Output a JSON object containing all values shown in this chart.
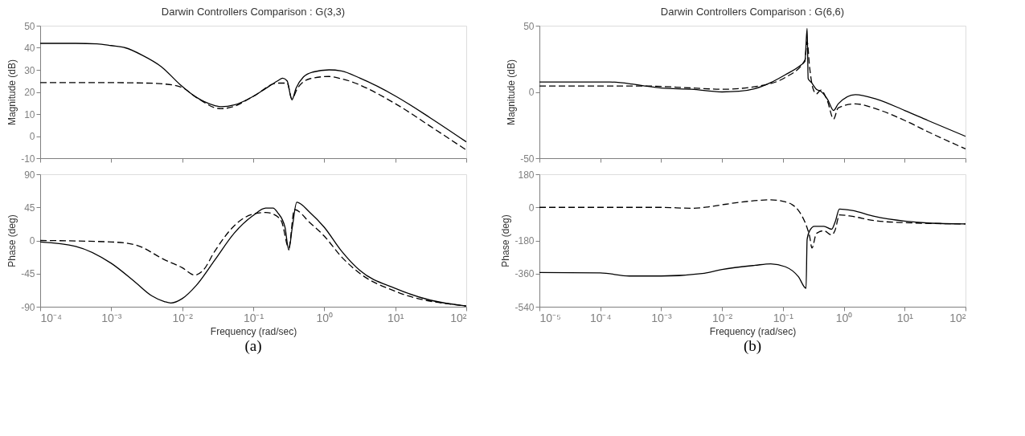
{
  "chart_data": [
    {
      "type": "line",
      "title": "Darwin Controllers Comparison : G(3,3)",
      "ylabel": "Magnitude (dB)",
      "log": "x",
      "grid": false,
      "tick_labels": "y",
      "xlim": [
        0.0001,
        100
      ],
      "xticks": [
        {
          "value": 0.0001,
          "label": null
        },
        {
          "value": 0.001,
          "label": null
        },
        {
          "value": 0.01,
          "label": null
        },
        {
          "value": 0.1,
          "label": null
        },
        {
          "value": 1,
          "label": null
        },
        {
          "value": 10,
          "label": null
        },
        {
          "value": 100,
          "label": null
        }
      ],
      "ylim": [
        -10,
        50
      ],
      "yticks": [
        -10,
        0,
        10,
        20,
        30,
        40,
        50
      ],
      "series": [
        {
          "color": "#000000",
          "line_style": "solid",
          "x": [
            0.0001,
            0.000316,
            0.00063,
            0.001,
            0.00158,
            0.00275,
            0.0051,
            0.0093,
            0.0158,
            0.029,
            0.035,
            0.054,
            0.1,
            0.15,
            0.22,
            0.26,
            0.3,
            0.35,
            0.4,
            0.51,
            0.69,
            1.17,
            1.74,
            3.2,
            10,
            31,
            100
          ],
          "values": [
            42,
            42,
            41.8,
            41,
            40,
            36.6,
            31.4,
            23.4,
            17.6,
            13.8,
            13.3,
            14.1,
            18,
            21.6,
            25,
            26.2,
            25,
            16.4,
            21.6,
            26.8,
            29,
            30,
            29.5,
            26.2,
            18.2,
            8.3,
            -2.6
          ]
        },
        {
          "color": "#000000",
          "line_style": "dashed",
          "x": [
            0.0001,
            0.001,
            0.00316,
            0.0056,
            0.01,
            0.0158,
            0.035,
            0.054,
            0.1,
            0.22,
            0.3,
            0.35,
            0.42,
            0.63,
            1.17,
            1.74,
            10,
            31,
            100
          ],
          "values": [
            24.2,
            24.2,
            24,
            23.6,
            22,
            17.5,
            12.4,
            13.5,
            18,
            24,
            24,
            17,
            21.6,
            26,
            27,
            26,
            14.7,
            4.5,
            -6.3
          ]
        }
      ]
    },
    {
      "type": "line",
      "title": "Darwin Controllers Comparison : G(6,6)",
      "ylabel": "Magnitude (dB)",
      "log": "x",
      "grid": false,
      "tick_labels": "y",
      "xlim": [
        1e-05,
        100
      ],
      "xticks": [
        {
          "value": 1e-05,
          "label": null
        },
        {
          "value": 0.0001,
          "label": null
        },
        {
          "value": 0.001,
          "label": null
        },
        {
          "value": 0.01,
          "label": null
        },
        {
          "value": 0.1,
          "label": null
        },
        {
          "value": 1,
          "label": null
        },
        {
          "value": 10,
          "label": null
        },
        {
          "value": 100,
          "label": null
        }
      ],
      "ylim": [
        -50,
        50
      ],
      "yticks": [
        -50,
        0,
        50
      ],
      "series": [
        {
          "color": "#000000",
          "line_style": "solid",
          "x": [
            1e-05,
            0.000145,
            0.00033,
            0.00054,
            0.001,
            0.00316,
            0.01,
            0.019,
            0.035,
            0.063,
            0.11,
            0.2,
            0.23,
            0.25,
            0.26,
            0.295,
            0.355,
            0.42,
            0.54,
            0.68,
            0.81,
            1.55,
            3.5,
            10,
            24,
            100
          ],
          "values": [
            7.5,
            7.5,
            6,
            4.5,
            3,
            2,
            0,
            0.5,
            2.5,
            7,
            13,
            20.5,
            23,
            48,
            10,
            7,
            2,
            0.5,
            -5.5,
            -14,
            -9,
            -2,
            -5.5,
            -14,
            -21.5,
            -33.5
          ]
        },
        {
          "color": "#000000",
          "line_style": "dashed",
          "x": [
            1e-05,
            0.00054,
            0.00316,
            0.01,
            0.035,
            0.11,
            0.23,
            0.25,
            0.275,
            0.31,
            0.355,
            0.42,
            0.54,
            0.68,
            0.81,
            1.55,
            3.5,
            10,
            24,
            100
          ],
          "values": [
            4.5,
            4.5,
            3,
            2,
            4,
            11,
            24,
            38,
            18.5,
            3,
            -1.5,
            1.5,
            -7,
            -20.5,
            -12,
            -9,
            -13,
            -21.5,
            -30,
            -43
          ]
        }
      ]
    },
    {
      "type": "line",
      "ylabel": "Phase (deg)",
      "xlabel": "Frequency  (rad/sec)",
      "annotations": [
        "(a)"
      ],
      "log": "x",
      "grid": false,
      "xlim": [
        0.0001,
        100
      ],
      "xticks": [
        {
          "value": 0.0001,
          "label": "10⁻⁴"
        },
        {
          "value": 0.001,
          "label": "10⁻³"
        },
        {
          "value": 0.01,
          "label": "10⁻²"
        },
        {
          "value": 0.1,
          "label": "10⁻¹"
        },
        {
          "value": 1,
          "label": "10⁰"
        },
        {
          "value": 10,
          "label": "10¹"
        },
        {
          "value": 100,
          "label": "10²"
        }
      ],
      "ylim": [
        -90,
        90
      ],
      "yticks": [
        -90,
        -45,
        0,
        45,
        90
      ],
      "series": [
        {
          "color": "#000000",
          "line_style": "solid",
          "x": [
            0.0001,
            0.000316,
            0.001,
            0.0022,
            0.0037,
            0.0056,
            0.0069,
            0.01,
            0.0158,
            0.029,
            0.054,
            0.1,
            0.15,
            0.19,
            0.22,
            0.28,
            0.316,
            0.355,
            0.41,
            0.63,
            1,
            1.74,
            3.2,
            10,
            31,
            100
          ],
          "values": [
            -2,
            -8,
            -31,
            -57,
            -75,
            -83,
            -85,
            -79,
            -61,
            -26,
            10,
            34,
            44,
            44,
            38,
            18,
            -13,
            18,
            52,
            38,
            18,
            -14,
            -41,
            -65,
            -81,
            -89
          ]
        },
        {
          "color": "#000000",
          "line_style": "dashed",
          "x": [
            0.0001,
            0.001,
            0.0022,
            0.0056,
            0.01,
            0.015,
            0.0195,
            0.029,
            0.054,
            0.1,
            0.15,
            0.19,
            0.25,
            0.316,
            0.38,
            0.63,
            1,
            1.74,
            3.2,
            10,
            100
          ],
          "values": [
            0,
            -2,
            -6,
            -26,
            -37,
            -47,
            -41,
            -14,
            20,
            36,
            38,
            36,
            26,
            -10,
            42,
            24,
            6,
            -22,
            -45,
            -69,
            -89
          ]
        }
      ]
    },
    {
      "type": "line",
      "ylabel": "Phase (deg)",
      "xlabel": "Frequency  (rad/sec)",
      "annotations": [
        "(b)"
      ],
      "log": "x",
      "grid": false,
      "xlim": [
        1e-05,
        100
      ],
      "xticks": [
        {
          "value": 1e-05,
          "label": "10⁻⁵"
        },
        {
          "value": 0.0001,
          "label": "10⁻⁴"
        },
        {
          "value": 0.001,
          "label": "10⁻³"
        },
        {
          "value": 0.01,
          "label": "10⁻²"
        },
        {
          "value": 0.1,
          "label": "10⁻¹"
        },
        {
          "value": 1,
          "label": "10⁰"
        },
        {
          "value": 10,
          "label": "10¹"
        },
        {
          "value": 100,
          "label": "10²"
        }
      ],
      "ylim": [
        -540,
        180
      ],
      "yticks": [
        -540,
        -360,
        -180,
        0,
        180
      ],
      "series": [
        {
          "color": "#000000",
          "line_style": "solid",
          "x": [
            1e-05,
            0.0001,
            0.0003,
            0.001,
            0.0051,
            0.01,
            0.035,
            0.063,
            0.11,
            0.18,
            0.24,
            0.25,
            0.275,
            0.33,
            0.47,
            0.63,
            0.72,
            0.85,
            1.38,
            3.16,
            10,
            24,
            100
          ],
          "values": [
            -354,
            -356,
            -373,
            -373,
            -358,
            -338,
            -315,
            -307,
            -323,
            -377,
            -440,
            -174,
            -127,
            -103,
            -103,
            -119,
            -80,
            -9,
            -17,
            -49,
            -75,
            -85,
            -90
          ]
        },
        {
          "color": "#000000",
          "line_style": "dashed",
          "x": [
            1e-05,
            0.001,
            0.00316,
            0.0058,
            0.01,
            0.019,
            0.063,
            0.11,
            0.18,
            0.23,
            0.25,
            0.275,
            0.3,
            0.355,
            0.47,
            0.63,
            0.72,
            0.85,
            1.38,
            3.16,
            10,
            100
          ],
          "values": [
            0,
            0,
            -5,
            2,
            14,
            27,
            41,
            30,
            -17,
            -80,
            -111,
            -158,
            -221,
            -142,
            -127,
            -150,
            -124,
            -41,
            -49,
            -72,
            -83,
            -90
          ]
        }
      ]
    }
  ]
}
